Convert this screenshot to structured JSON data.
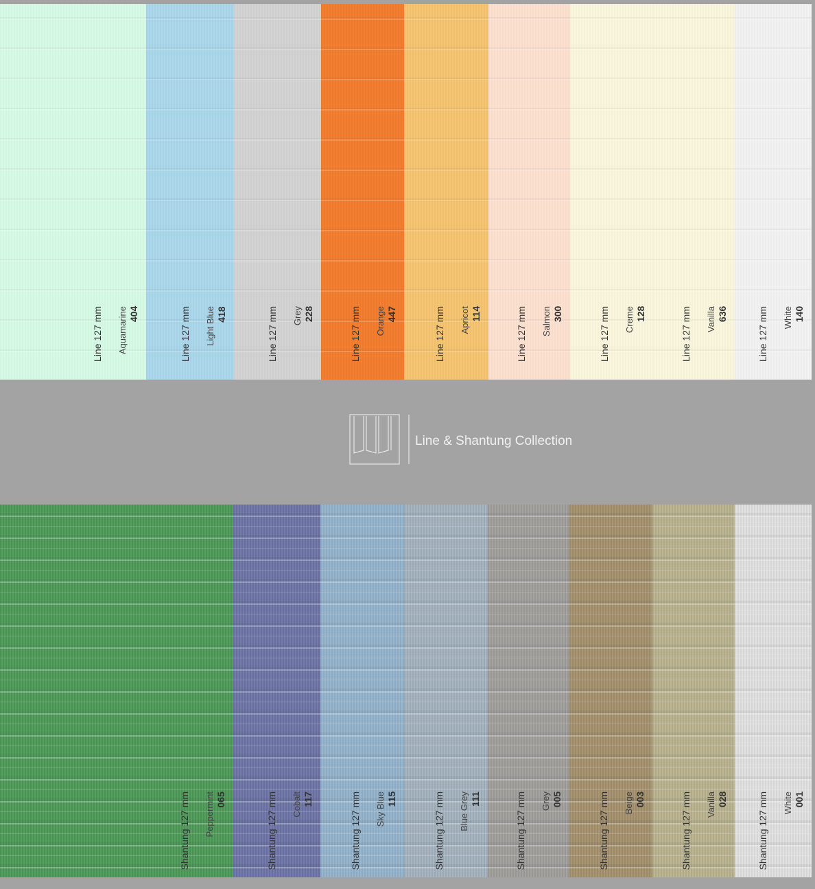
{
  "top_swatches": [
    {
      "line": "Line 127 mm",
      "name": "Aquamarine",
      "code": "404"
    },
    {
      "line": "Line 127 mm",
      "name": "Light Blue",
      "code": "418"
    },
    {
      "line": "Line 127 mm",
      "name": "Grey",
      "code": "228"
    },
    {
      "line": "Line 127 mm",
      "name": "Orange",
      "code": "447"
    },
    {
      "line": "Line 127 mm",
      "name": "Apricot",
      "code": "114"
    },
    {
      "line": "Line 127 mm",
      "name": "Salmon",
      "code": "300"
    },
    {
      "line": "Line 127 mm",
      "name": "Creme",
      "code": "128"
    },
    {
      "line": "Line 127 mm",
      "name": "Vanilla",
      "code": "636"
    },
    {
      "line": "Line 127 mm",
      "name": "White",
      "code": "140"
    }
  ],
  "collection_title": "Line & Shantung Collection",
  "bottom_swatches": [
    {
      "line": "Shantung 127 mm",
      "name": "Peppermint",
      "code": "065"
    },
    {
      "line": "Shantung 127 mm",
      "name": "Cobalt",
      "code": "117"
    },
    {
      "line": "Shantung 127 mm",
      "name": "Sky Blue",
      "code": "115"
    },
    {
      "line": "Shantung 127 mm",
      "name": "Blue Grey",
      "code": "111"
    },
    {
      "line": "Shantung 127 mm",
      "name": "Grey",
      "code": "005"
    },
    {
      "line": "Shantung 127 mm",
      "name": "Beige",
      "code": "003"
    },
    {
      "line": "Shantung 127 mm",
      "name": "Vanilla",
      "code": "028"
    },
    {
      "line": "Shantung 127 mm",
      "name": "White",
      "code": "001"
    }
  ]
}
